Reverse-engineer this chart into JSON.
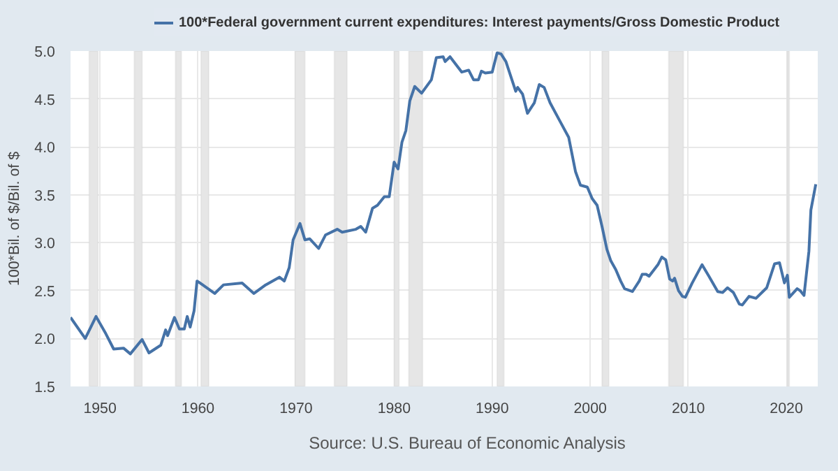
{
  "chart_data": {
    "type": "line",
    "ylabel": "100*Bil. of $/Bil. of $",
    "annotations": [
      "Source: U.S. Bureau of Economic Analysis"
    ],
    "xlim": [
      1947,
      2023.2
    ],
    "xticks": [
      1950,
      1960,
      1970,
      1980,
      1990,
      2000,
      2010,
      2020
    ],
    "ylim": [
      1.5,
      5.0
    ],
    "yticks": [
      1.5,
      {
        "value": 2,
        "label": "2.0"
      },
      2.5,
      {
        "value": 3,
        "label": "3.0"
      },
      3.5,
      {
        "value": 4,
        "label": "4.0"
      },
      4.5,
      {
        "value": 5,
        "label": "5.0"
      }
    ],
    "grid": true,
    "legend": "top",
    "marker": "none",
    "line_style": "solid",
    "bands": [
      {
        "axis": "x",
        "from": 1948.9,
        "to": 1949.8,
        "color": "#e6e6e6"
      },
      {
        "axis": "x",
        "from": 1953.5,
        "to": 1954.3,
        "color": "#e6e6e6"
      },
      {
        "axis": "x",
        "from": 1957.7,
        "to": 1958.3,
        "color": "#e6e6e6"
      },
      {
        "axis": "x",
        "from": 1960.3,
        "to": 1961.1,
        "color": "#e6e6e6"
      },
      {
        "axis": "x",
        "from": 1969.9,
        "to": 1970.9,
        "color": "#e6e6e6"
      },
      {
        "axis": "x",
        "from": 1973.9,
        "to": 1975.2,
        "color": "#e6e6e6"
      },
      {
        "axis": "x",
        "from": 1980.0,
        "to": 1980.5,
        "color": "#e6e6e6"
      },
      {
        "axis": "x",
        "from": 1981.5,
        "to": 1982.9,
        "color": "#e6e6e6"
      },
      {
        "axis": "x",
        "from": 1990.5,
        "to": 1991.2,
        "color": "#e6e6e6"
      },
      {
        "axis": "x",
        "from": 2001.2,
        "to": 2001.9,
        "color": "#e6e6e6"
      },
      {
        "axis": "x",
        "from": 2008.0,
        "to": 2009.5,
        "color": "#e6e6e6"
      },
      {
        "axis": "x",
        "from": 2020.1,
        "to": 2020.3,
        "color": "#e6e6e6"
      }
    ],
    "series": [
      {
        "name": "100*Federal government current expenditures: Interest payments/Gross Domestic Product",
        "color": "#4572a7",
        "x": [
          1947.0,
          1948.5,
          1949.6,
          1950.6,
          1951.4,
          1952.4,
          1953.1,
          1954.3,
          1955.0,
          1956.2,
          1956.7,
          1956.9,
          1957.6,
          1958.1,
          1958.6,
          1958.9,
          1959.2,
          1959.6,
          1959.9,
          1960.2,
          1961.7,
          1962.6,
          1964.5,
          1965.7,
          1966.9,
          1968.3,
          1968.8,
          1969.3,
          1969.7,
          1970.4,
          1970.9,
          1971.4,
          1972.3,
          1973.0,
          1974.2,
          1974.7,
          1976.1,
          1976.6,
          1977.1,
          1977.8,
          1978.3,
          1979.0,
          1979.5,
          1980.0,
          1980.4,
          1980.8,
          1981.2,
          1981.6,
          1982.1,
          1982.8,
          1983.8,
          1984.3,
          1985.0,
          1985.2,
          1985.7,
          1986.9,
          1987.6,
          1988.1,
          1988.6,
          1988.9,
          1989.3,
          1990.0,
          1990.5,
          1990.9,
          1991.4,
          1992.4,
          1992.6,
          1993.1,
          1993.6,
          1994.3,
          1994.8,
          1995.3,
          1995.9,
          1996.9,
          1997.8,
          1998.5,
          1999.0,
          1999.7,
          2000.2,
          2000.7,
          2001.2,
          2001.7,
          2002.1,
          2002.6,
          2003.1,
          2003.5,
          2004.3,
          2005.0,
          2005.3,
          2005.7,
          2006.0,
          2006.9,
          2007.3,
          2007.7,
          2008.1,
          2008.4,
          2008.6,
          2009.0,
          2009.4,
          2009.7,
          2010.4,
          2011.4,
          2012.1,
          2013.0,
          2013.5,
          2014.0,
          2014.6,
          2015.2,
          2015.5,
          2016.2,
          2016.9,
          2017.6,
          2018.0,
          2018.8,
          2019.3,
          2019.8,
          2020.1,
          2020.3,
          2021.1,
          2021.4,
          2021.8,
          2022.3,
          2022.5,
          2023.0
        ],
        "values": [
          2.22,
          2.0,
          2.23,
          2.05,
          1.89,
          1.9,
          1.84,
          1.99,
          1.85,
          1.93,
          2.09,
          2.03,
          2.22,
          2.1,
          2.1,
          2.23,
          2.12,
          2.29,
          2.6,
          2.58,
          2.47,
          2.56,
          2.58,
          2.47,
          2.56,
          2.64,
          2.6,
          2.74,
          3.03,
          3.2,
          3.03,
          3.04,
          2.94,
          3.08,
          3.14,
          3.11,
          3.14,
          3.17,
          3.11,
          3.36,
          3.39,
          3.48,
          3.48,
          3.84,
          3.77,
          4.05,
          4.17,
          4.48,
          4.63,
          4.56,
          4.7,
          4.93,
          4.94,
          4.89,
          4.94,
          4.78,
          4.8,
          4.7,
          4.7,
          4.79,
          4.77,
          4.78,
          4.98,
          4.97,
          4.89,
          4.58,
          4.62,
          4.55,
          4.35,
          4.46,
          4.65,
          4.62,
          4.46,
          4.27,
          4.1,
          3.74,
          3.6,
          3.58,
          3.46,
          3.39,
          3.17,
          2.93,
          2.81,
          2.72,
          2.6,
          2.52,
          2.49,
          2.6,
          2.67,
          2.67,
          2.65,
          2.77,
          2.85,
          2.82,
          2.62,
          2.6,
          2.63,
          2.5,
          2.44,
          2.43,
          2.58,
          2.77,
          2.65,
          2.49,
          2.48,
          2.53,
          2.48,
          2.36,
          2.35,
          2.44,
          2.42,
          2.49,
          2.53,
          2.78,
          2.79,
          2.58,
          2.66,
          2.43,
          2.52,
          2.5,
          2.45,
          2.91,
          3.34,
          3.61
        ]
      }
    ]
  }
}
